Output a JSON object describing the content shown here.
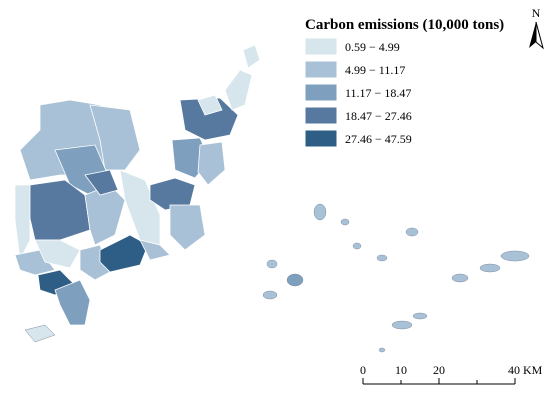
{
  "legend": {
    "title": "Carbon emissions (10,000 tons)",
    "items": [
      {
        "label": "0.59 − 4.99",
        "color": "#d6e6ec"
      },
      {
        "label": "4.99 − 11.17",
        "color": "#a9c1d6"
      },
      {
        "label": "11.17 − 18.47",
        "color": "#7f9fbe"
      },
      {
        "label": "18.47 − 27.46",
        "color": "#57799f"
      },
      {
        "label": "27.46 − 47.59",
        "color": "#2e5d86"
      }
    ]
  },
  "north_arrow": {
    "label": "N"
  },
  "scale_bar": {
    "labels": [
      "0",
      "10",
      "20",
      "40 KM"
    ]
  }
}
